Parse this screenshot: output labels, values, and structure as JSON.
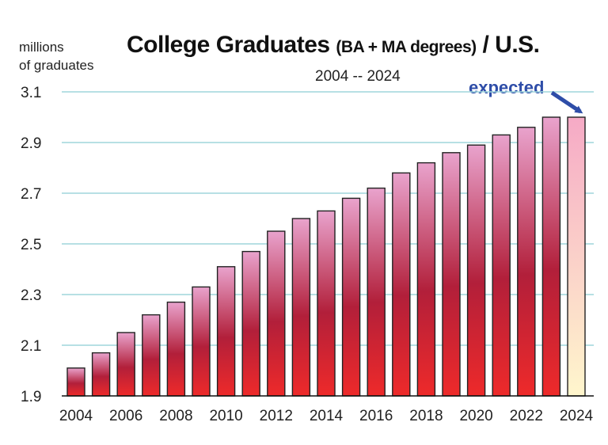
{
  "chart_data": {
    "type": "bar",
    "title_main": "College Graduates",
    "title_sub": "(BA + MA degrees)",
    "title_end": "/ U.S.",
    "subtitle": "2004 -- 2024",
    "ylabel_line1": "millions",
    "ylabel_line2": "of graduates",
    "annotation": "expected",
    "categories": [
      "2004",
      "2005",
      "2006",
      "2007",
      "2008",
      "2009",
      "2010",
      "2011",
      "2012",
      "2013",
      "2014",
      "2015",
      "2016",
      "2017",
      "2018",
      "2019",
      "2020",
      "2021",
      "2022",
      "2023",
      "2024"
    ],
    "values": [
      2.01,
      2.07,
      2.15,
      2.22,
      2.27,
      2.33,
      2.41,
      2.47,
      2.55,
      2.6,
      2.63,
      2.68,
      2.72,
      2.78,
      2.82,
      2.86,
      2.89,
      2.93,
      2.96,
      3.0,
      3.0
    ],
    "projected": [
      false,
      false,
      false,
      false,
      false,
      false,
      false,
      false,
      false,
      false,
      false,
      false,
      false,
      false,
      false,
      false,
      false,
      false,
      false,
      false,
      true
    ],
    "x_tick_labels": [
      "2004",
      "2006",
      "2008",
      "2010",
      "2012",
      "2014",
      "2016",
      "2018",
      "2020",
      "2022",
      "2024"
    ],
    "y_ticks": [
      1.9,
      2.1,
      2.3,
      2.5,
      2.7,
      2.9,
      3.1
    ],
    "y_tick_labels": [
      "1.9",
      "2.1",
      "2.3",
      "2.5",
      "2.7",
      "2.9",
      "3.1"
    ],
    "ylim": [
      1.9,
      3.1
    ],
    "grid": true,
    "colors": {
      "bar_top": "#e9a3cd",
      "bar_mid": "#b21f3a",
      "bar_bottom": "#ee2a2a",
      "projected_top": "#f6aac6",
      "projected_bottom": "#fff6cc",
      "grid": "#9fd6dc",
      "annotation": "#2e4da8",
      "edge": "#222222"
    }
  }
}
